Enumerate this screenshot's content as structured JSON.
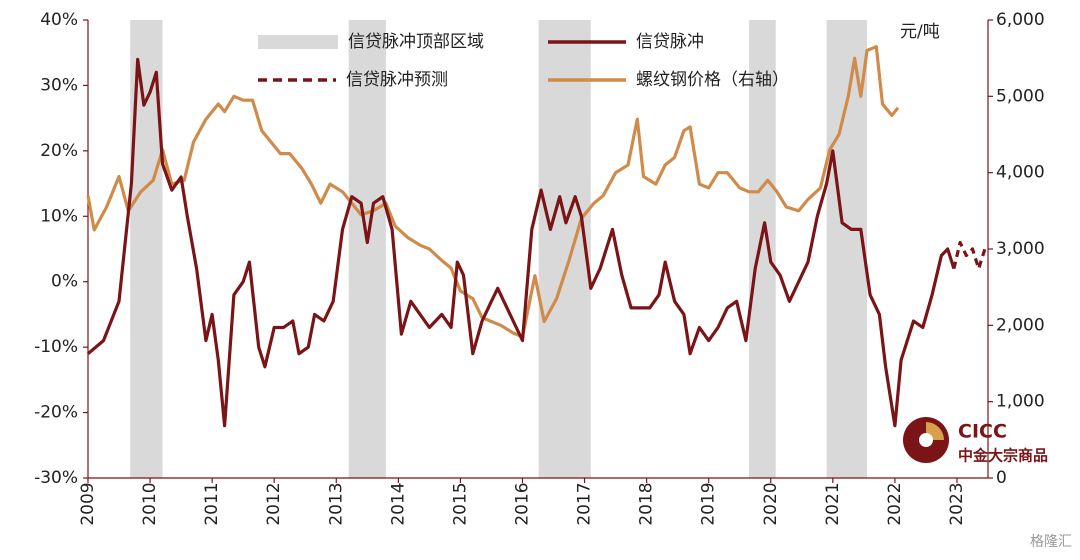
{
  "chart_data": {
    "type": "line",
    "y2_unit": "元/吨",
    "xlim": [
      2009,
      2023.5
    ],
    "xticks": [
      2009,
      2010,
      2011,
      2012,
      2013,
      2014,
      2015,
      2016,
      2017,
      2018,
      2019,
      2020,
      2021,
      2022,
      2023
    ],
    "ylim": [
      -30,
      40
    ],
    "yticks": [
      {
        "value": -30,
        "label": "-30%"
      },
      {
        "value": -20,
        "label": "-20%"
      },
      {
        "value": -10,
        "label": "-10%"
      },
      {
        "value": 0,
        "label": "0%"
      },
      {
        "value": 10,
        "label": "10%"
      },
      {
        "value": 20,
        "label": "20%"
      },
      {
        "value": 30,
        "label": "30%"
      },
      {
        "value": 40,
        "label": "40%"
      }
    ],
    "y2lim": [
      0,
      6000
    ],
    "y2ticks": [
      0,
      {
        "value": 1000,
        "label": "1,000"
      },
      {
        "value": 2000,
        "label": "2,000"
      },
      {
        "value": 3000,
        "label": "3,000"
      },
      {
        "value": 4000,
        "label": "4,000"
      },
      {
        "value": 5000,
        "label": "5,000"
      },
      {
        "value": 6000,
        "label": "6,000"
      }
    ],
    "shaded_regions": {
      "name": "信贷脉冲顶部区域",
      "color": "#d9d9d9",
      "ranges": [
        [
          2009.68,
          2010.2
        ],
        [
          2013.2,
          2013.8
        ],
        [
          2016.26,
          2017.1
        ],
        [
          2019.65,
          2020.08
        ],
        [
          2020.9,
          2021.55
        ]
      ]
    },
    "series": [
      {
        "name": "信贷脉冲",
        "color": "#7b1416",
        "dashed": false,
        "x": [
          2009.0,
          2009.25,
          2009.5,
          2009.7,
          2009.8,
          2009.9,
          2010.0,
          2010.1,
          2010.2,
          2010.35,
          2010.5,
          2010.6,
          2010.75,
          2010.9,
          2011.0,
          2011.1,
          2011.2,
          2011.35,
          2011.5,
          2011.6,
          2011.75,
          2011.85,
          2012.0,
          2012.15,
          2012.3,
          2012.4,
          2012.55,
          2012.65,
          2012.8,
          2012.95,
          2013.1,
          2013.25,
          2013.4,
          2013.5,
          2013.6,
          2013.75,
          2013.9,
          2014.05,
          2014.2,
          2014.35,
          2014.5,
          2014.7,
          2014.85,
          2014.95,
          2015.05,
          2015.2,
          2015.35,
          2015.5,
          2015.6,
          2015.75,
          2015.9,
          2016.0,
          2016.15,
          2016.3,
          2016.45,
          2016.6,
          2016.7,
          2016.85,
          2016.95,
          2017.1,
          2017.25,
          2017.45,
          2017.6,
          2017.75,
          2017.9,
          2018.05,
          2018.2,
          2018.3,
          2018.45,
          2018.6,
          2018.7,
          2018.85,
          2019.0,
          2019.15,
          2019.3,
          2019.45,
          2019.6,
          2019.75,
          2019.9,
          2020.0,
          2020.15,
          2020.3,
          2020.45,
          2020.6,
          2020.75,
          2020.9,
          2021.0,
          2021.15,
          2021.3,
          2021.45,
          2021.6,
          2021.75,
          2021.85,
          2022.0,
          2022.1,
          2022.3,
          2022.45,
          2022.6,
          2022.75,
          2022.85,
          2022.95
        ],
        "values": [
          -11,
          -9,
          -3,
          15,
          34,
          27,
          29,
          32,
          18,
          14,
          16,
          10,
          2,
          -9,
          -5,
          -12,
          -22,
          -2,
          0,
          3,
          -10,
          -13,
          -7,
          -7,
          -6,
          -11,
          -10,
          -5,
          -6,
          -3,
          8,
          13,
          12,
          6,
          12,
          13,
          8,
          -8,
          -3,
          -5,
          -7,
          -5,
          -7,
          3,
          1,
          -11,
          -6,
          -3,
          -1,
          -4,
          -7,
          -9,
          8,
          14,
          8,
          13,
          9,
          13,
          10,
          -1,
          2,
          8,
          1,
          -4,
          -4,
          -4,
          -2,
          3,
          -3,
          -5,
          -11,
          -7,
          -9,
          -7,
          -4,
          -3,
          -9,
          2,
          9,
          3,
          1,
          -3,
          0,
          3,
          10,
          15,
          20,
          9,
          8,
          8,
          -2,
          -5,
          -13,
          -22,
          -12,
          -6,
          -7,
          -2,
          4,
          5,
          2
        ]
      },
      {
        "name": "信贷脉冲预测",
        "color": "#7b1416",
        "dashed": true,
        "x": [
          2022.95,
          2023.05,
          2023.15,
          2023.25,
          2023.35,
          2023.45
        ],
        "values": [
          2,
          6,
          4,
          5,
          2,
          5
        ]
      },
      {
        "name": "螺纹钢价格（右轴）",
        "color": "#d08a4a",
        "dashed": false,
        "axis": "y2",
        "x": [
          2009.0,
          2009.1,
          2009.3,
          2009.5,
          2009.65,
          2009.85,
          2010.05,
          2010.2,
          2010.35,
          2010.55,
          2010.7,
          2010.9,
          2011.1,
          2011.2,
          2011.35,
          2011.5,
          2011.65,
          2011.8,
          2011.95,
          2012.1,
          2012.25,
          2012.45,
          2012.6,
          2012.75,
          2012.9,
          2013.1,
          2013.25,
          2013.4,
          2013.6,
          2013.8,
          2013.95,
          2014.15,
          2014.35,
          2014.5,
          2014.7,
          2014.85,
          2015.0,
          2015.2,
          2015.35,
          2015.5,
          2015.65,
          2015.85,
          2016.0,
          2016.2,
          2016.35,
          2016.55,
          2016.75,
          2016.95,
          2017.15,
          2017.3,
          2017.5,
          2017.7,
          2017.85,
          2017.95,
          2018.15,
          2018.3,
          2018.45,
          2018.6,
          2018.7,
          2018.85,
          2019.0,
          2019.15,
          2019.3,
          2019.5,
          2019.65,
          2019.8,
          2019.95,
          2020.1,
          2020.25,
          2020.45,
          2020.6,
          2020.8,
          2020.95,
          2021.1,
          2021.25,
          2021.35,
          2021.45,
          2021.55,
          2021.7,
          2021.8,
          2021.95,
          2022.05
        ],
        "values": [
          3700,
          3250,
          3550,
          3950,
          3500,
          3750,
          3900,
          4300,
          3850,
          3900,
          4400,
          4700,
          4900,
          4800,
          5000,
          4950,
          4950,
          4550,
          4400,
          4250,
          4250,
          4050,
          3850,
          3600,
          3850,
          3750,
          3600,
          3450,
          3500,
          3600,
          3300,
          3150,
          3050,
          3000,
          2850,
          2750,
          2450,
          2350,
          2100,
          2050,
          2000,
          1900,
          1850,
          2650,
          2050,
          2350,
          2850,
          3400,
          3600,
          3700,
          4000,
          4100,
          4700,
          3950,
          3850,
          4100,
          4200,
          4550,
          4600,
          3850,
          3800,
          4000,
          4000,
          3800,
          3750,
          3750,
          3900,
          3750,
          3550,
          3500,
          3650,
          3800,
          4300,
          4500,
          5000,
          5500,
          5000,
          5600,
          5650,
          4900,
          4750,
          4850
        ]
      }
    ],
    "logo": {
      "brand": "CICC",
      "subtitle": "中金大宗商品"
    },
    "watermark": "格隆汇"
  }
}
